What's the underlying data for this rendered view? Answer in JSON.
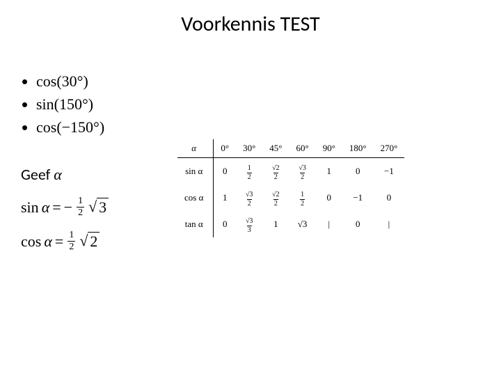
{
  "title": "Voorkennis TEST",
  "problems": {
    "p1": "cos(30°)",
    "p2": "sin(150°)",
    "p3": "cos(−150°)"
  },
  "geef_label": "Geef ",
  "alpha": "α",
  "eq1": {
    "func": "sin",
    "var": "α",
    "eq": " = ",
    "neg": "−",
    "frac_n": "1",
    "frac_d": "2",
    "root": "3"
  },
  "eq2": {
    "func": "cos",
    "var": "α",
    "eq": " = ",
    "frac_n": "1",
    "frac_d": "2",
    "root": "2"
  },
  "table": {
    "header_label": "α",
    "angles": [
      "0°",
      "30°",
      "45°",
      "60°",
      "90°",
      "180°",
      "270°"
    ],
    "rows": [
      {
        "label": "sin α",
        "cells": [
          {
            "t": "plain",
            "v": "0"
          },
          {
            "t": "frac",
            "n": "1",
            "d": "2"
          },
          {
            "t": "sfrac",
            "n": "√2",
            "d": "2"
          },
          {
            "t": "sfrac",
            "n": "√3",
            "d": "2"
          },
          {
            "t": "plain",
            "v": "1"
          },
          {
            "t": "plain",
            "v": "0"
          },
          {
            "t": "plain",
            "v": "−1"
          }
        ]
      },
      {
        "label": "cos α",
        "cells": [
          {
            "t": "plain",
            "v": "1"
          },
          {
            "t": "sfrac",
            "n": "√3",
            "d": "2"
          },
          {
            "t": "sfrac",
            "n": "√2",
            "d": "2"
          },
          {
            "t": "frac",
            "n": "1",
            "d": "2"
          },
          {
            "t": "plain",
            "v": "0"
          },
          {
            "t": "plain",
            "v": "−1"
          },
          {
            "t": "plain",
            "v": "0"
          }
        ]
      },
      {
        "label": "tan α",
        "cells": [
          {
            "t": "plain",
            "v": "0"
          },
          {
            "t": "sfrac",
            "n": "√3",
            "d": "3"
          },
          {
            "t": "plain",
            "v": "1"
          },
          {
            "t": "plain",
            "v": "√3"
          },
          {
            "t": "plain",
            "v": "|"
          },
          {
            "t": "plain",
            "v": "0"
          },
          {
            "t": "plain",
            "v": "|"
          }
        ]
      }
    ]
  }
}
